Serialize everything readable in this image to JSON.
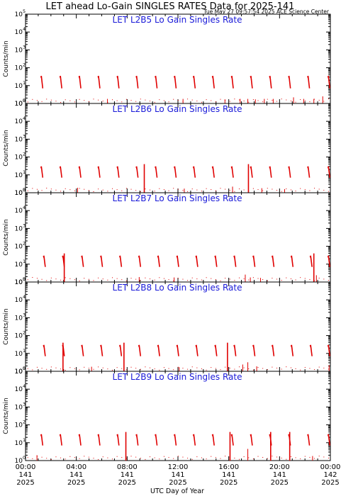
{
  "chart_data": {
    "type": "line",
    "title": "LET ahead Lo-Gain SINGLES RATES Data for 2025-141",
    "timestamp": "Tue May 27 09:57:54 2025 ACE Science Center",
    "ylabel": "Counts/min",
    "xlabel": "UTC Day of Year",
    "y_scale": "log",
    "ylim": [
      1,
      100000
    ],
    "y_ticks": [
      {
        "base": "10",
        "exp": "0"
      },
      {
        "base": "10",
        "exp": "1"
      },
      {
        "base": "10",
        "exp": "2"
      },
      {
        "base": "10",
        "exp": "3"
      },
      {
        "base": "10",
        "exp": "4"
      },
      {
        "base": "10",
        "exp": "5"
      }
    ],
    "xlim_hours": [
      0,
      24
    ],
    "x_ticks": [
      {
        "time": "00:00",
        "doy": "141",
        "year": "2025"
      },
      {
        "time": "04:00",
        "doy": "141",
        "year": "2025"
      },
      {
        "time": "08:00",
        "doy": "141",
        "year": "2025"
      },
      {
        "time": "12:00",
        "doy": "141",
        "year": "2025"
      },
      {
        "time": "16:00",
        "doy": "141",
        "year": "2025"
      },
      {
        "time": "20:00",
        "doy": "141",
        "year": "2025"
      },
      {
        "time": "00:00",
        "doy": "142",
        "year": "2025"
      }
    ],
    "line_color": "#e00000",
    "panels": [
      {
        "name": "LET L2B5 Lo Gain Singles Rate",
        "pass_hours": [
          1.3,
          2.8,
          4.3,
          5.8,
          7.3,
          8.8,
          10.3,
          11.8,
          13.3,
          14.8,
          16.3,
          17.8,
          19.3,
          20.8,
          22.3,
          23.9
        ],
        "pass_peak": 35,
        "spikes": [
          {
            "hour": 6.45,
            "value": 1.8
          },
          {
            "hour": 12.4,
            "value": 1.8
          },
          {
            "hour": 15.7,
            "value": 1.7
          },
          {
            "hour": 16.9,
            "value": 1.8
          },
          {
            "hour": 17.5,
            "value": 1.8
          },
          {
            "hour": 18.1,
            "value": 1.7
          },
          {
            "hour": 18.8,
            "value": 1.8
          },
          {
            "hour": 19.5,
            "value": 1.8
          },
          {
            "hour": 21.1,
            "value": 2.2
          },
          {
            "hour": 21.9,
            "value": 1.8
          },
          {
            "hour": 22.7,
            "value": 1.8
          },
          {
            "hour": 23.4,
            "value": 2.5
          }
        ]
      },
      {
        "name": "LET L2B6 Lo Gain Singles Rate",
        "pass_hours": [
          1.3,
          2.8,
          4.3,
          5.8,
          7.3,
          8.8,
          10.3,
          11.8,
          13.3,
          14.8,
          16.3,
          17.8,
          19.3,
          20.8,
          22.3,
          23.9
        ],
        "pass_peak": 30,
        "spikes": [
          {
            "hour": 4.1,
            "value": 1.9
          },
          {
            "hour": 9.35,
            "value": 40
          },
          {
            "hour": 12.5,
            "value": 1.7
          },
          {
            "hour": 16.3,
            "value": 2.2
          },
          {
            "hour": 17.55,
            "value": 40
          },
          {
            "hour": 18.6,
            "value": 1.8
          },
          {
            "hour": 20.4,
            "value": 1.6
          }
        ]
      },
      {
        "name": "LET L2B7 Lo Gain Singles Rate",
        "pass_hours": [
          1.5,
          3.0,
          4.5,
          6.0,
          7.5,
          9.0,
          10.5,
          12.0,
          13.5,
          15.0,
          16.5,
          18.0,
          19.5,
          21.0,
          22.5,
          23.9
        ],
        "pass_peak": 30,
        "spikes": [
          {
            "hour": 3.05,
            "value": 40
          },
          {
            "hour": 8.95,
            "value": 1.9
          },
          {
            "hour": 11.7,
            "value": 1.8
          },
          {
            "hour": 17.3,
            "value": 2.6
          },
          {
            "hour": 17.7,
            "value": 1.8
          },
          {
            "hour": 18.5,
            "value": 1.7
          },
          {
            "hour": 22.7,
            "value": 40
          },
          {
            "hour": 22.9,
            "value": 2.4
          }
        ]
      },
      {
        "name": "LET L2B8 Lo Gain Singles Rate",
        "pass_hours": [
          1.5,
          3.0,
          4.5,
          6.0,
          7.5,
          9.0,
          10.5,
          12.0,
          13.5,
          15.0,
          16.5,
          18.0,
          19.5,
          21.0,
          22.5,
          23.9
        ],
        "pass_peak": 30,
        "spikes": [
          {
            "hour": 2.95,
            "value": 40
          },
          {
            "hour": 5.2,
            "value": 1.8
          },
          {
            "hour": 7.75,
            "value": 40
          },
          {
            "hour": 12.1,
            "value": 1.7
          },
          {
            "hour": 15.9,
            "value": 40
          },
          {
            "hour": 17.1,
            "value": 2.4
          },
          {
            "hour": 17.5,
            "value": 3.2
          },
          {
            "hour": 18.2,
            "value": 1.9
          },
          {
            "hour": 23.9,
            "value": 2.2
          }
        ]
      },
      {
        "name": "LET L2B9 Lo Gain Singles Rate",
        "pass_hours": [
          1.3,
          2.8,
          4.3,
          5.8,
          7.3,
          8.8,
          10.3,
          11.8,
          13.3,
          14.8,
          16.3,
          17.8,
          19.3,
          20.8,
          22.3,
          23.9
        ],
        "pass_peak": 30,
        "spikes": [
          {
            "hour": 0.9,
            "value": 2.0
          },
          {
            "hour": 7.9,
            "value": 40
          },
          {
            "hour": 16.1,
            "value": 40
          },
          {
            "hour": 17.5,
            "value": 4.5
          },
          {
            "hour": 19.3,
            "value": 40
          },
          {
            "hour": 20.8,
            "value": 40
          },
          {
            "hour": 22.6,
            "value": 1.8
          }
        ]
      }
    ]
  }
}
